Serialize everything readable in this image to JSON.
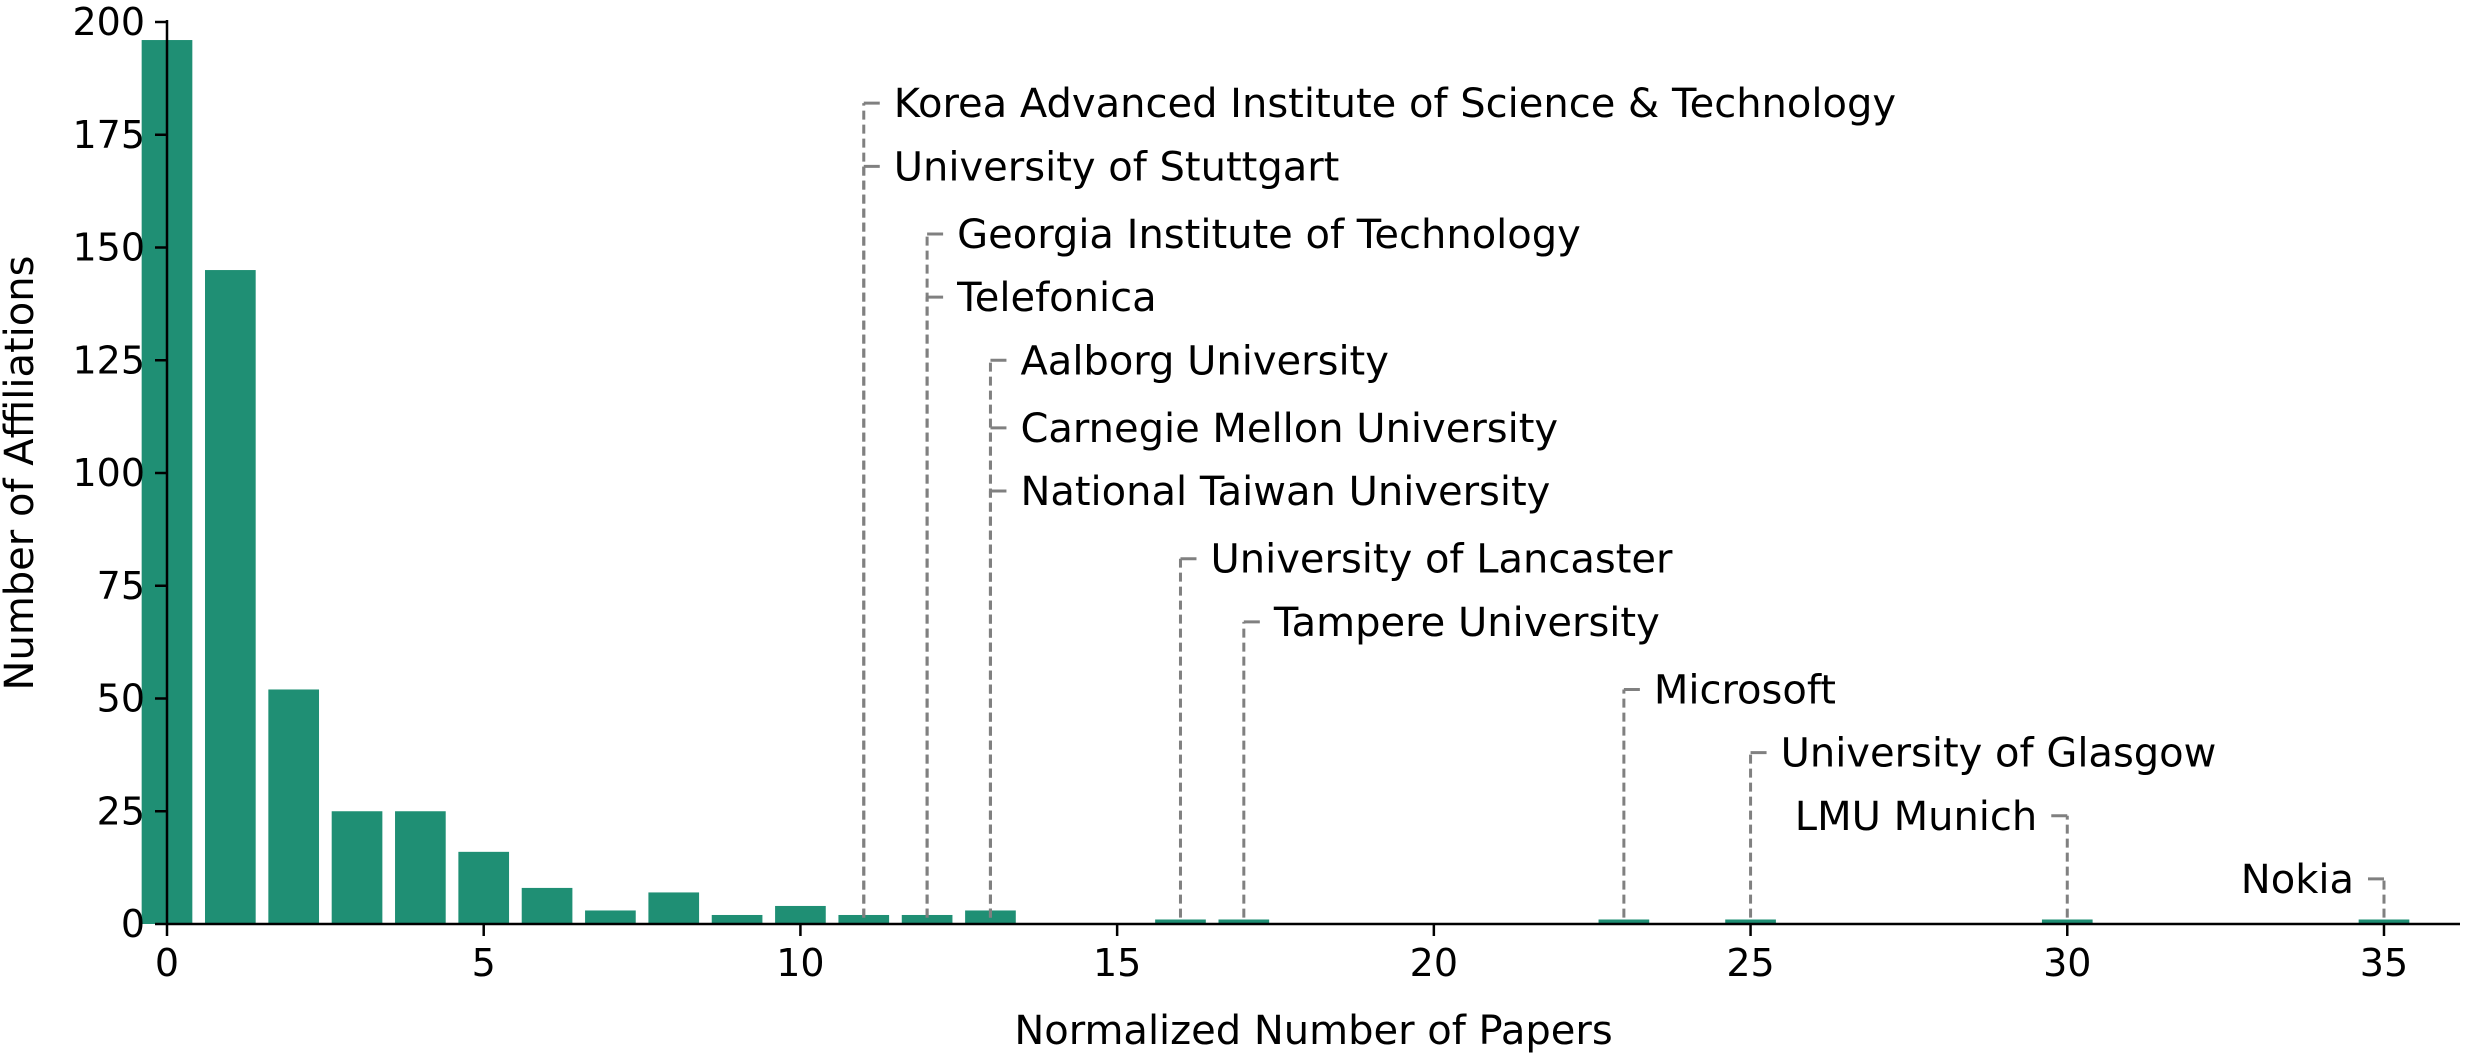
{
  "chart_data": {
    "type": "bar",
    "title": "",
    "xlabel": "Normalized Number of Papers",
    "ylabel": "Number of Affiliations",
    "xlim": [
      0,
      36.2
    ],
    "ylim": [
      0,
      200
    ],
    "xticks": [
      0,
      5,
      10,
      15,
      20,
      25,
      30,
      35
    ],
    "yticks": [
      0,
      25,
      50,
      75,
      100,
      125,
      150,
      175,
      200
    ],
    "bar_color": "#1f8f74",
    "annotation_line_color": "#808080",
    "grid": false,
    "bars": [
      {
        "x": 0,
        "value": 196
      },
      {
        "x": 1,
        "value": 145
      },
      {
        "x": 2,
        "value": 52
      },
      {
        "x": 3,
        "value": 25
      },
      {
        "x": 4,
        "value": 25
      },
      {
        "x": 5,
        "value": 16
      },
      {
        "x": 6,
        "value": 8
      },
      {
        "x": 7,
        "value": 3
      },
      {
        "x": 8,
        "value": 7
      },
      {
        "x": 9,
        "value": 2
      },
      {
        "x": 10,
        "value": 4
      },
      {
        "x": 11,
        "value": 2
      },
      {
        "x": 12,
        "value": 2
      },
      {
        "x": 13,
        "value": 3
      },
      {
        "x": 16,
        "value": 1
      },
      {
        "x": 17,
        "value": 1
      },
      {
        "x": 23,
        "value": 1
      },
      {
        "x": 25,
        "value": 1
      },
      {
        "x": 30,
        "value": 1
      },
      {
        "x": 35,
        "value": 1
      }
    ],
    "annotations": [
      {
        "label": "Korea Advanced Institute of Science & Technology",
        "x": 11,
        "y": 182,
        "side": "right"
      },
      {
        "label": "University of Stuttgart",
        "x": 11,
        "y": 168,
        "side": "right"
      },
      {
        "label": "Georgia Institute of Technology",
        "x": 12,
        "y": 153,
        "side": "right"
      },
      {
        "label": "Telefonica",
        "x": 12,
        "y": 139,
        "side": "right"
      },
      {
        "label": "Aalborg University",
        "x": 13,
        "y": 125,
        "side": "right"
      },
      {
        "label": "Carnegie Mellon University",
        "x": 13,
        "y": 110,
        "side": "right"
      },
      {
        "label": "National Taiwan University",
        "x": 13,
        "y": 96,
        "side": "right"
      },
      {
        "label": "University of Lancaster",
        "x": 16,
        "y": 81,
        "side": "right"
      },
      {
        "label": "Tampere University",
        "x": 17,
        "y": 67,
        "side": "right"
      },
      {
        "label": "Microsoft",
        "x": 23,
        "y": 52,
        "side": "right"
      },
      {
        "label": "University of Glasgow",
        "x": 25,
        "y": 38,
        "side": "right"
      },
      {
        "label": "LMU Munich",
        "x": 30,
        "y": 24,
        "side": "left"
      },
      {
        "label": "Nokia",
        "x": 35,
        "y": 10,
        "side": "left"
      }
    ]
  }
}
